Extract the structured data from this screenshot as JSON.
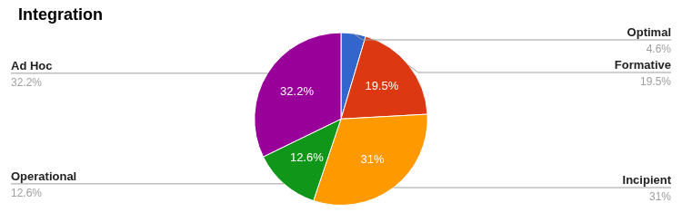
{
  "chart_data": {
    "type": "pie",
    "title": "Integration",
    "categories": [
      "Optimal",
      "Formative",
      "Incipient",
      "Operational",
      "Ad Hoc"
    ],
    "values": [
      4.6,
      19.5,
      31,
      12.6,
      32.2
    ],
    "value_labels": [
      "4.6%",
      "19.5%",
      "31%",
      "12.6%",
      "32.2%"
    ],
    "colors": [
      "#3366cc",
      "#dc3912",
      "#ff9900",
      "#109618",
      "#990099"
    ],
    "data_labels": true
  }
}
